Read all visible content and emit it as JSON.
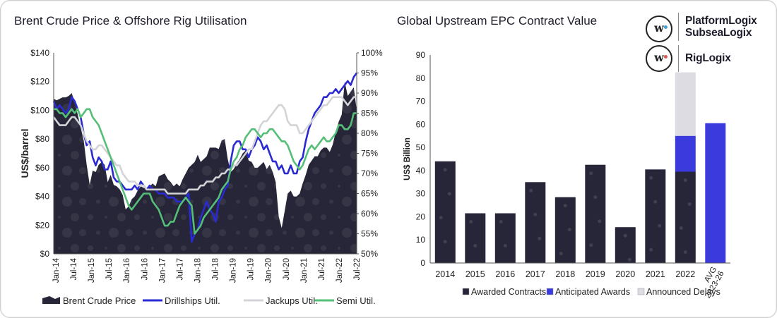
{
  "brand": {
    "top_names": [
      "PlatformLogix",
      "SubseaLogix"
    ],
    "bottom_name": "RigLogix",
    "dot_colors": [
      "#3aa0d8",
      "#d9534f"
    ]
  },
  "chart_data": [
    {
      "type": "line",
      "title": "Brent Crude Price & Offshore Rig Utilisation",
      "ylabel": "US$/barrel",
      "ylim": [
        0,
        140
      ],
      "y_ticks": [
        "$0",
        "$20",
        "$40",
        "$60",
        "$80",
        "$100",
        "$120",
        "$140"
      ],
      "y2lim": [
        50,
        100
      ],
      "y2_ticks": [
        "50%",
        "55%",
        "60%",
        "65%",
        "70%",
        "75%",
        "80%",
        "85%",
        "90%",
        "95%",
        "100%"
      ],
      "x_ticks": [
        "Jan-14",
        "Jul-14",
        "Jan-15",
        "Jul-15",
        "Jan-16",
        "Jul-16",
        "Jan-17",
        "Jul-17",
        "Jan-18",
        "Jul-18",
        "Jan-19",
        "Jul-19",
        "Jan-20",
        "Jul-20",
        "Jan-21",
        "Jul-21",
        "Jan-22",
        "Jul-22"
      ],
      "legend_position": "bottom",
      "grid": false,
      "series": [
        {
          "name": "Brent Crude Price",
          "kind": "area",
          "axis": "left",
          "color": "#262638",
          "values": [
            108,
            107,
            108,
            109,
            109,
            110,
            112,
            106,
            97,
            88,
            79,
            62,
            48,
            58,
            57,
            62,
            64,
            62,
            50,
            55,
            48,
            47,
            45,
            41,
            31,
            33,
            38,
            40,
            44,
            47,
            46,
            45,
            47,
            49,
            47,
            54,
            55,
            56,
            52,
            50,
            47,
            49,
            47,
            52,
            56,
            60,
            62,
            64,
            69,
            64,
            66,
            68,
            74,
            74,
            74,
            73,
            79,
            80,
            66,
            57,
            59,
            63,
            66,
            70,
            72,
            65,
            64,
            60,
            60,
            62,
            64,
            59,
            62,
            57,
            50,
            26,
            18,
            30,
            42,
            44,
            40,
            40,
            42,
            49,
            55,
            62,
            65,
            68,
            68,
            72,
            74,
            74,
            71,
            76,
            85,
            92,
            97,
            120,
            110,
            113,
            116,
            100
          ]
        },
        {
          "name": "Drillships Util.",
          "kind": "line",
          "axis": "right",
          "color": "#2a2ad2",
          "values": [
            88,
            86,
            87,
            86,
            85,
            86,
            89,
            88,
            86,
            84,
            80,
            77,
            78,
            74,
            72,
            74,
            73,
            71,
            71,
            73,
            69,
            68,
            68,
            67,
            66,
            66,
            66,
            67,
            66,
            68,
            67,
            66,
            67,
            66,
            66,
            65,
            65,
            65,
            64,
            64,
            64,
            63,
            63,
            63,
            64,
            65,
            53,
            55,
            56,
            59,
            61,
            63,
            61,
            60,
            58,
            63,
            64,
            66,
            67,
            73,
            77,
            78,
            78,
            76,
            76,
            74,
            76,
            77,
            79,
            78,
            76,
            77,
            75,
            73,
            73,
            71,
            72,
            70,
            70,
            72,
            70,
            70,
            73,
            74,
            78,
            81,
            83,
            85,
            86,
            87,
            89,
            89,
            90,
            90,
            91,
            90,
            91,
            92,
            93,
            92,
            94,
            95
          ]
        },
        {
          "name": "Jackups  Util.",
          "kind": "line",
          "axis": "right",
          "color": "#d4d4d8",
          "values": [
            84,
            83,
            82,
            82,
            82,
            83,
            84,
            84,
            83,
            82,
            80,
            78,
            77,
            76,
            76,
            77,
            77,
            76,
            75,
            74,
            73,
            72,
            72,
            70,
            69,
            68,
            68,
            68,
            67,
            67,
            67,
            66,
            66,
            66,
            66,
            66,
            66,
            66,
            65,
            65,
            65,
            65,
            65,
            65,
            65,
            66,
            66,
            66,
            66,
            67,
            67,
            68,
            68,
            68,
            69,
            69,
            70,
            70,
            71,
            71,
            72,
            72,
            73,
            74,
            75,
            76,
            76,
            78,
            80,
            82,
            83,
            83,
            84,
            85,
            86,
            87,
            87,
            86,
            83,
            82,
            82,
            82,
            80,
            80,
            81,
            82,
            83,
            84,
            85,
            86,
            87,
            87,
            88,
            89,
            89,
            89,
            89,
            88,
            87,
            88,
            89,
            89
          ]
        },
        {
          "name": "Semi Util.",
          "kind": "line",
          "axis": "right",
          "color": "#55bf78",
          "values": [
            86,
            86,
            85,
            85,
            84,
            85,
            86,
            85,
            86,
            84,
            85,
            86,
            86,
            84,
            83,
            82,
            80,
            78,
            76,
            74,
            72,
            70,
            68,
            66,
            64,
            62,
            61,
            62,
            63,
            64,
            65,
            65,
            65,
            63,
            62,
            61,
            59,
            57,
            57,
            58,
            58,
            60,
            62,
            63,
            64,
            63,
            62,
            55,
            56,
            57,
            59,
            60,
            61,
            62,
            63,
            64,
            66,
            67,
            68,
            71,
            73,
            74,
            76,
            77,
            79,
            80,
            81,
            81,
            80,
            79,
            80,
            80,
            81,
            81,
            80,
            79,
            78,
            78,
            77,
            75,
            73,
            72,
            71,
            72,
            74,
            76,
            77,
            76,
            77,
            78,
            79,
            78,
            78,
            79,
            80,
            82,
            82,
            81,
            81,
            82,
            85,
            85
          ]
        }
      ]
    },
    {
      "type": "bar",
      "title": "Global Upstream EPC Contract Value",
      "ylabel": "US$ Billion",
      "ylim": [
        0,
        90
      ],
      "y_ticks": [
        "0",
        "10",
        "20",
        "30",
        "40",
        "50",
        "60",
        "70",
        "80",
        "90"
      ],
      "categories": [
        "2014",
        "2015",
        "2016",
        "2017",
        "2018",
        "2019",
        "2020",
        "2021",
        "2022",
        "AVG 2023-26"
      ],
      "legend_position": "bottom",
      "grid": false,
      "series": [
        {
          "name": "Awarded Contracts",
          "color": "#262638",
          "values": [
            44,
            21.5,
            21.5,
            35,
            28.5,
            42.5,
            15.5,
            40.5,
            39.5,
            0
          ]
        },
        {
          "name": "Anticipated Awards",
          "color": "#3b3bdd",
          "values": [
            0,
            0,
            0,
            0,
            0,
            0,
            0,
            0,
            15.5,
            60.5
          ]
        },
        {
          "name": "Announced Delays",
          "color": "#dcdce2",
          "values": [
            0,
            0,
            0,
            0,
            0,
            0,
            0,
            0,
            27.5,
            0
          ]
        }
      ]
    }
  ]
}
